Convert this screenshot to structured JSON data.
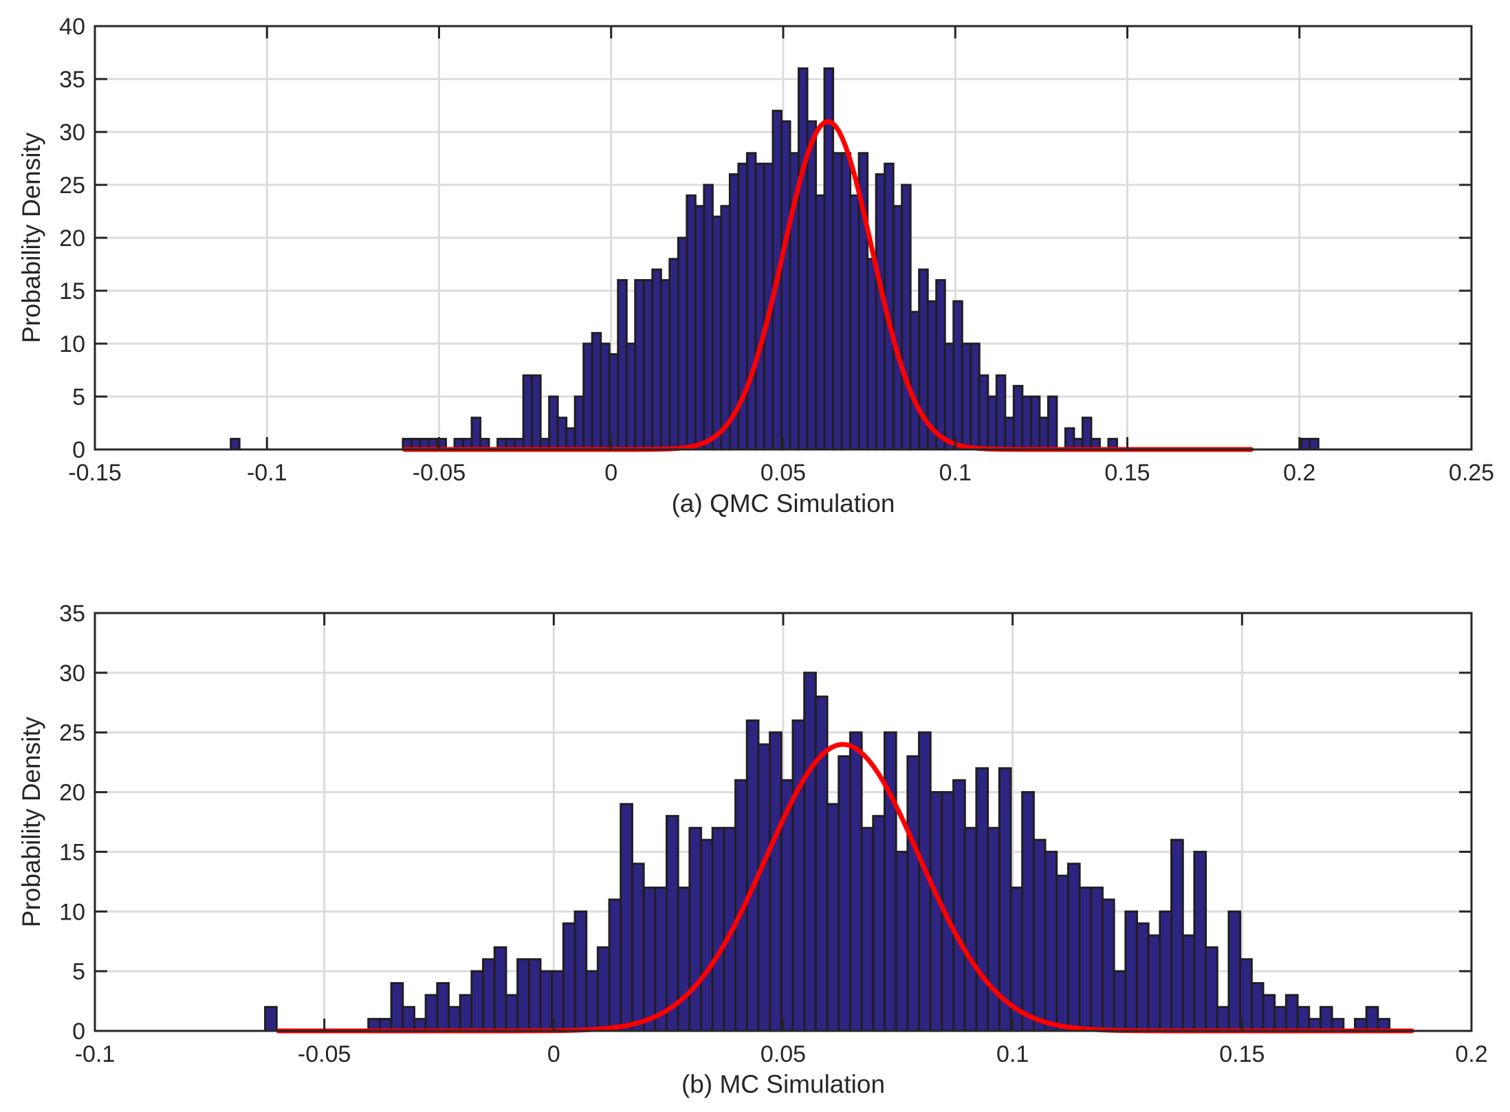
{
  "colors": {
    "bar_fill": "#2e2482",
    "bar_edge": "#1f1f1f",
    "fit_line": "#ff0000",
    "grid": "#dcdcdc",
    "axis": "#262626"
  },
  "chart_data": [
    {
      "type": "bar",
      "title": "(a) QMC Simulation",
      "xlabel": "(a) QMC Simulation",
      "ylabel": "Probability Density",
      "xlim": [
        -0.15,
        0.25
      ],
      "ylim": [
        0,
        40
      ],
      "grid": true,
      "xticks": [
        -0.15,
        -0.1,
        -0.05,
        0,
        0.05,
        0.1,
        0.15,
        0.2,
        0.25
      ],
      "xtick_labels": [
        "-0.15",
        "-0.1",
        "-0.05",
        "0",
        "0.05",
        "0.1",
        "0.15",
        "0.2",
        "0.25"
      ],
      "yticks": [
        0,
        5,
        10,
        15,
        20,
        25,
        30,
        35,
        40
      ],
      "ytick_labels": [
        "0",
        "5",
        "10",
        "15",
        "20",
        "25",
        "30",
        "35",
        "40"
      ],
      "bin_width": 0.0025,
      "bins": [
        [
          -0.1105,
          1
        ],
        [
          -0.0605,
          1
        ],
        [
          -0.058,
          1
        ],
        [
          -0.0555,
          1
        ],
        [
          -0.053,
          1
        ],
        [
          -0.0505,
          1
        ],
        [
          -0.048,
          0
        ],
        [
          -0.0455,
          1
        ],
        [
          -0.043,
          1
        ],
        [
          -0.0405,
          3
        ],
        [
          -0.038,
          1
        ],
        [
          -0.0355,
          0
        ],
        [
          -0.033,
          1
        ],
        [
          -0.0305,
          1
        ],
        [
          -0.028,
          1
        ],
        [
          -0.0255,
          7
        ],
        [
          -0.023,
          7
        ],
        [
          -0.0205,
          1
        ],
        [
          -0.018,
          5
        ],
        [
          -0.0155,
          3
        ],
        [
          -0.013,
          2
        ],
        [
          -0.0105,
          5
        ],
        [
          -0.008,
          10
        ],
        [
          -0.0055,
          11
        ],
        [
          -0.003,
          10
        ],
        [
          -0.0005,
          9
        ],
        [
          0.002,
          16
        ],
        [
          0.0045,
          10
        ],
        [
          0.007,
          16
        ],
        [
          0.0095,
          16
        ],
        [
          0.012,
          17
        ],
        [
          0.0145,
          16
        ],
        [
          0.017,
          18
        ],
        [
          0.0195,
          20
        ],
        [
          0.022,
          24
        ],
        [
          0.0245,
          23
        ],
        [
          0.027,
          25
        ],
        [
          0.0295,
          22
        ],
        [
          0.032,
          23
        ],
        [
          0.0345,
          26
        ],
        [
          0.037,
          27
        ],
        [
          0.0395,
          28
        ],
        [
          0.042,
          27
        ],
        [
          0.0445,
          27
        ],
        [
          0.047,
          32
        ],
        [
          0.0495,
          31
        ],
        [
          0.052,
          28
        ],
        [
          0.0545,
          36
        ],
        [
          0.057,
          31
        ],
        [
          0.0595,
          24
        ],
        [
          0.062,
          36
        ],
        [
          0.0645,
          28
        ],
        [
          0.067,
          28
        ],
        [
          0.0695,
          24
        ],
        [
          0.072,
          28
        ],
        [
          0.0745,
          18
        ],
        [
          0.077,
          26
        ],
        [
          0.0795,
          27
        ],
        [
          0.082,
          23
        ],
        [
          0.0845,
          25
        ],
        [
          0.087,
          13
        ],
        [
          0.0895,
          17
        ],
        [
          0.092,
          14
        ],
        [
          0.0945,
          16
        ],
        [
          0.097,
          10
        ],
        [
          0.0995,
          14
        ],
        [
          0.102,
          10
        ],
        [
          0.1045,
          10
        ],
        [
          0.107,
          7
        ],
        [
          0.1095,
          5
        ],
        [
          0.112,
          7
        ],
        [
          0.1145,
          3
        ],
        [
          0.117,
          6
        ],
        [
          0.1195,
          5
        ],
        [
          0.122,
          5
        ],
        [
          0.1245,
          3
        ],
        [
          0.127,
          5
        ],
        [
          0.1295,
          0
        ],
        [
          0.132,
          2
        ],
        [
          0.1345,
          1
        ],
        [
          0.137,
          3
        ],
        [
          0.1395,
          1
        ],
        [
          0.142,
          0
        ],
        [
          0.1445,
          1
        ],
        [
          0.147,
          0
        ],
        [
          0.2005,
          1
        ],
        [
          0.203,
          1
        ]
      ],
      "fit": {
        "label": "normal fit",
        "mean": 0.063,
        "std": 0.0129,
        "peak": 31,
        "x_range": [
          -0.06,
          0.186
        ]
      }
    },
    {
      "type": "bar",
      "title": "(b) MC Simulation",
      "xlabel": "(b) MC Simulation",
      "ylabel": "Probability Density",
      "xlim": [
        -0.1,
        0.2
      ],
      "ylim": [
        0,
        35
      ],
      "grid": true,
      "xticks": [
        -0.1,
        -0.05,
        0,
        0.05,
        0.1,
        0.15,
        0.2
      ],
      "xtick_labels": [
        "-0.1",
        "-0.05",
        "0",
        "0.05",
        "0.1",
        "0.15",
        "0.2"
      ],
      "yticks": [
        0,
        5,
        10,
        15,
        20,
        25,
        30,
        35
      ],
      "ytick_labels": [
        "0",
        "5",
        "10",
        "15",
        "20",
        "25",
        "30",
        "35"
      ],
      "bin_width": 0.0025,
      "bins": [
        [
          -0.0629,
          2
        ],
        [
          -0.0404,
          1
        ],
        [
          -0.0379,
          1
        ],
        [
          -0.0354,
          4
        ],
        [
          -0.0329,
          2
        ],
        [
          -0.0304,
          1
        ],
        [
          -0.0279,
          3
        ],
        [
          -0.0254,
          4
        ],
        [
          -0.0229,
          2
        ],
        [
          -0.0204,
          3
        ],
        [
          -0.0179,
          5
        ],
        [
          -0.0154,
          6
        ],
        [
          -0.0129,
          7
        ],
        [
          -0.0104,
          3
        ],
        [
          -0.0079,
          6
        ],
        [
          -0.0054,
          6
        ],
        [
          -0.0029,
          5
        ],
        [
          -0.0004,
          5
        ],
        [
          0.0021,
          9
        ],
        [
          0.0046,
          10
        ],
        [
          0.0071,
          5
        ],
        [
          0.0096,
          7
        ],
        [
          0.0121,
          11
        ],
        [
          0.0146,
          19
        ],
        [
          0.0171,
          14
        ],
        [
          0.0196,
          12
        ],
        [
          0.0221,
          12
        ],
        [
          0.0246,
          18
        ],
        [
          0.0271,
          12
        ],
        [
          0.0296,
          17
        ],
        [
          0.0321,
          16
        ],
        [
          0.0346,
          17
        ],
        [
          0.0371,
          17
        ],
        [
          0.0396,
          21
        ],
        [
          0.0421,
          26
        ],
        [
          0.0446,
          24
        ],
        [
          0.0471,
          25
        ],
        [
          0.0496,
          21
        ],
        [
          0.0521,
          26
        ],
        [
          0.0546,
          30
        ],
        [
          0.0571,
          28
        ],
        [
          0.0596,
          19
        ],
        [
          0.0621,
          23
        ],
        [
          0.0646,
          25
        ],
        [
          0.0671,
          17
        ],
        [
          0.0696,
          18
        ],
        [
          0.0721,
          25
        ],
        [
          0.0746,
          15
        ],
        [
          0.0771,
          23
        ],
        [
          0.0796,
          25
        ],
        [
          0.0821,
          20
        ],
        [
          0.0846,
          20
        ],
        [
          0.0871,
          21
        ],
        [
          0.0896,
          17
        ],
        [
          0.0921,
          22
        ],
        [
          0.0946,
          17
        ],
        [
          0.0971,
          22
        ],
        [
          0.0996,
          12
        ],
        [
          0.1021,
          20
        ],
        [
          0.1046,
          16
        ],
        [
          0.1071,
          15
        ],
        [
          0.1096,
          13
        ],
        [
          0.1121,
          14
        ],
        [
          0.1146,
          12
        ],
        [
          0.1171,
          12
        ],
        [
          0.1196,
          11
        ],
        [
          0.1221,
          5
        ],
        [
          0.1246,
          10
        ],
        [
          0.1271,
          9
        ],
        [
          0.1296,
          8
        ],
        [
          0.1321,
          10
        ],
        [
          0.1346,
          16
        ],
        [
          0.1371,
          8
        ],
        [
          0.1396,
          15
        ],
        [
          0.1421,
          7
        ],
        [
          0.1446,
          2
        ],
        [
          0.1471,
          10
        ],
        [
          0.1496,
          6
        ],
        [
          0.1521,
          4
        ],
        [
          0.1546,
          3
        ],
        [
          0.1571,
          2
        ],
        [
          0.1596,
          3
        ],
        [
          0.1621,
          2
        ],
        [
          0.1646,
          1
        ],
        [
          0.1671,
          2
        ],
        [
          0.1696,
          1
        ],
        [
          0.1721,
          0
        ],
        [
          0.1746,
          1
        ],
        [
          0.1771,
          2
        ],
        [
          0.1796,
          1
        ]
      ],
      "fit": {
        "label": "normal fit",
        "mean": 0.063,
        "std": 0.0167,
        "peak": 24,
        "x_range": [
          -0.06,
          0.187
        ]
      }
    }
  ]
}
